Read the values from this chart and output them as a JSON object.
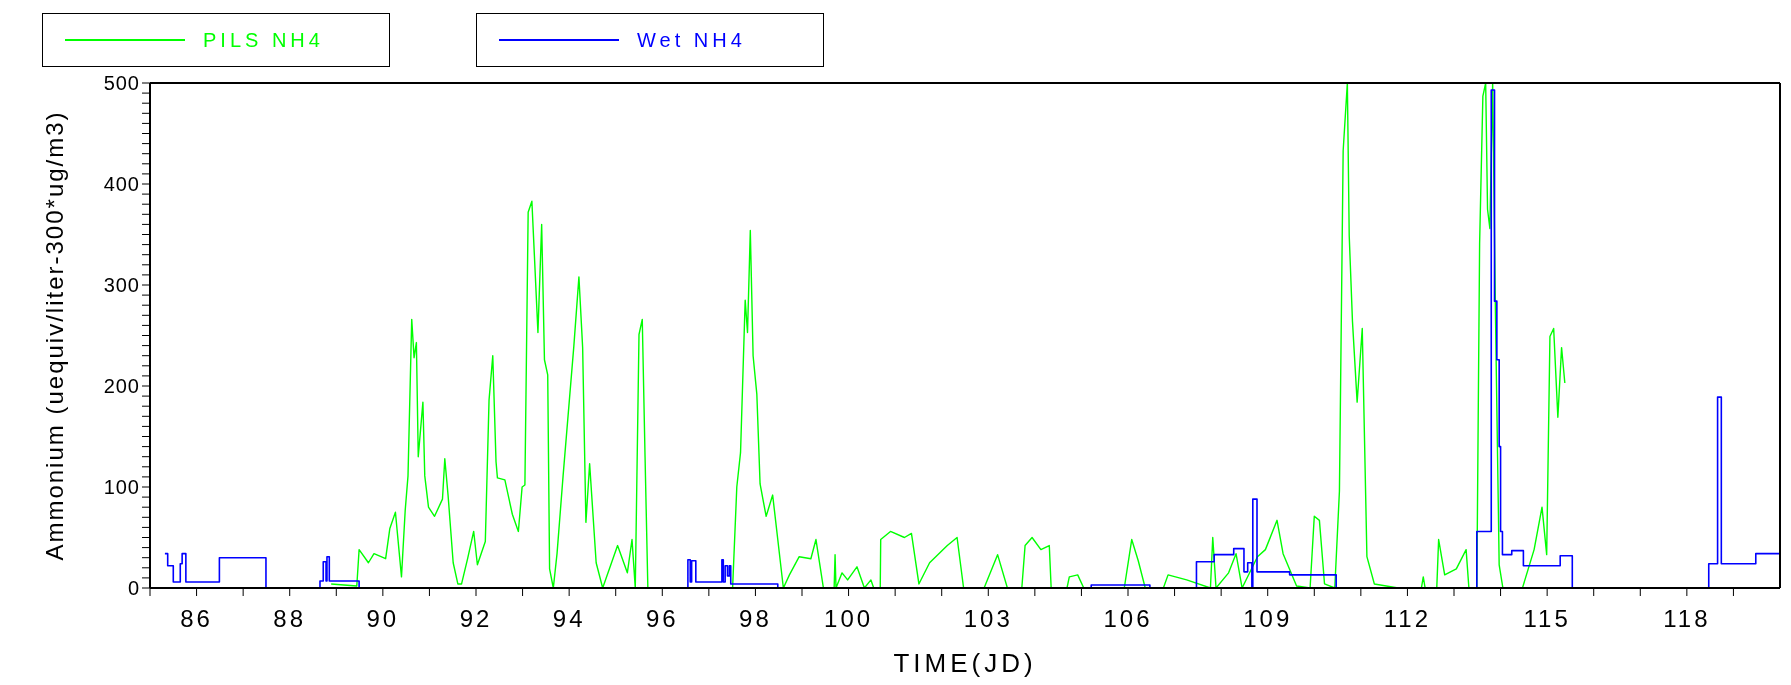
{
  "chart_data": {
    "type": "line",
    "xlabel": "TIME(JD)",
    "ylabel": "Ammonium (uequiv/liter-300*ug/m3)",
    "xlim": [
      85,
      120
    ],
    "xticks": [
      {
        "value": 85,
        "label": null
      },
      86,
      {
        "value": 87,
        "label": null
      },
      88,
      {
        "value": 89,
        "label": null
      },
      90,
      {
        "value": 91,
        "label": null
      },
      92,
      {
        "value": 93,
        "label": null
      },
      94,
      {
        "value": 95,
        "label": null
      },
      96,
      {
        "value": 97,
        "label": null
      },
      98,
      {
        "value": 99,
        "label": null
      },
      100,
      {
        "value": 101,
        "label": null
      },
      {
        "value": 102,
        "label": null
      },
      103,
      {
        "value": 104,
        "label": null
      },
      {
        "value": 105,
        "label": null
      },
      106,
      {
        "value": 107,
        "label": null
      },
      {
        "value": 108,
        "label": null
      },
      109,
      {
        "value": 110,
        "label": null
      },
      {
        "value": 111,
        "label": null
      },
      112,
      {
        "value": 113,
        "label": null
      },
      {
        "value": 114,
        "label": null
      },
      115,
      {
        "value": 116,
        "label": null
      },
      {
        "value": 117,
        "label": null
      },
      118,
      {
        "value": 119,
        "label": null
      }
    ],
    "ylim": [
      0,
      500
    ],
    "yticks": [
      0,
      {
        "value": 10,
        "label": null
      },
      {
        "value": 20,
        "label": null
      },
      {
        "value": 30,
        "label": null
      },
      {
        "value": 40,
        "label": null
      },
      {
        "value": 50,
        "label": null
      },
      {
        "value": 60,
        "label": null
      },
      {
        "value": 70,
        "label": null
      },
      {
        "value": 80,
        "label": null
      },
      {
        "value": 90,
        "label": null
      },
      100,
      {
        "value": 110,
        "label": null
      },
      {
        "value": 120,
        "label": null
      },
      {
        "value": 130,
        "label": null
      },
      {
        "value": 140,
        "label": null
      },
      {
        "value": 150,
        "label": null
      },
      {
        "value": 160,
        "label": null
      },
      {
        "value": 170,
        "label": null
      },
      {
        "value": 180,
        "label": null
      },
      {
        "value": 190,
        "label": null
      },
      200,
      {
        "value": 210,
        "label": null
      },
      {
        "value": 220,
        "label": null
      },
      {
        "value": 230,
        "label": null
      },
      {
        "value": 240,
        "label": null
      },
      {
        "value": 250,
        "label": null
      },
      {
        "value": 260,
        "label": null
      },
      {
        "value": 270,
        "label": null
      },
      {
        "value": 280,
        "label": null
      },
      {
        "value": 290,
        "label": null
      },
      300,
      {
        "value": 310,
        "label": null
      },
      {
        "value": 320,
        "label": null
      },
      {
        "value": 330,
        "label": null
      },
      {
        "value": 340,
        "label": null
      },
      {
        "value": 350,
        "label": null
      },
      {
        "value": 360,
        "label": null
      },
      {
        "value": 370,
        "label": null
      },
      {
        "value": 380,
        "label": null
      },
      {
        "value": 390,
        "label": null
      },
      400,
      {
        "value": 410,
        "label": null
      },
      {
        "value": 420,
        "label": null
      },
      {
        "value": 430,
        "label": null
      },
      {
        "value": 440,
        "label": null
      },
      {
        "value": 450,
        "label": null
      },
      {
        "value": 460,
        "label": null
      },
      {
        "value": 470,
        "label": null
      },
      {
        "value": 480,
        "label": null
      },
      {
        "value": 490,
        "label": null
      },
      500
    ],
    "legend": "top left",
    "grid": false,
    "series": [
      {
        "name": "PILS NH4",
        "color": "#00ff00",
        "type": "line",
        "x": [
          88.89,
          89.44,
          89.49,
          89.69,
          89.81,
          90.06,
          90.15,
          90.27,
          90.4,
          90.48,
          90.54,
          90.62,
          90.67,
          90.72,
          90.76,
          90.86,
          90.9,
          90.98,
          91.11,
          91.28,
          91.33,
          91.4,
          91.51,
          91.61,
          91.69,
          91.82,
          91.95,
          92.03,
          92.2,
          92.28,
          92.36,
          92.43,
          92.46,
          92.62,
          92.78,
          92.91,
          92.99,
          93.05,
          93.12,
          93.2,
          93.33,
          93.41,
          93.47,
          93.54,
          93.58,
          93.66,
          93.74,
          93.87,
          94.1,
          94.21,
          94.29,
          94.36,
          94.44,
          94.58,
          94.72,
          95.04,
          95.25,
          95.35,
          95.42,
          95.5,
          95.57,
          95.63,
          95.69,
          97.51,
          97.6,
          97.68,
          97.78,
          97.83,
          97.89,
          97.95,
          98.03,
          98.1,
          98.23,
          98.37,
          98.6,
          98.73,
          98.94,
          99.19,
          99.3,
          99.46,
          99.69,
          99.71,
          99.73,
          99.86,
          99.98,
          100.18,
          100.34,
          100.48,
          100.54,
          100.68,
          100.69,
          100.9,
          101.2,
          101.35,
          101.51,
          101.74,
          102.12,
          102.33,
          102.47,
          102.91,
          103.2,
          103.41,
          103.72,
          103.79,
          103.94,
          104.13,
          104.31,
          104.35,
          104.69,
          104.74,
          104.92,
          105.05,
          105.92,
          106.08,
          106.22,
          106.37,
          106.76,
          106.86,
          107.26,
          107.77,
          107.82,
          107.89,
          108.16,
          108.32,
          108.45,
          108.78,
          108.95,
          109.2,
          109.33,
          109.62,
          109.91,
          110.0,
          110.11,
          110.22,
          110.44,
          110.54,
          110.62,
          110.71,
          110.75,
          110.82,
          110.92,
          111.03,
          111.13,
          111.29,
          111.8,
          112.3,
          112.34,
          112.38,
          112.63,
          112.67,
          112.8,
          113.05,
          113.26,
          113.32,
          113.49,
          113.55,
          113.62,
          113.68,
          113.72,
          113.77,
          113.83,
          113.89,
          113.97,
          114.05,
          114.47,
          114.72,
          114.89,
          114.99,
          115.06,
          115.14,
          115.23,
          115.31,
          115.38
        ],
        "values": [
          4,
          2,
          38,
          25,
          34,
          29,
          59,
          75,
          11,
          77,
          111,
          266,
          228,
          243,
          130,
          184,
          111,
          80,
          71,
          88,
          128,
          92,
          25,
          4,
          4,
          29,
          56,
          23,
          46,
          186,
          230,
          125,
          109,
          107,
          73,
          56,
          100,
          102,
          372,
          383,
          253,
          360,
          226,
          211,
          19,
          0,
          34,
          111,
          239,
          308,
          238,
          65,
          123,
          25,
          0,
          42,
          15,
          48,
          0,
          251,
          266,
          130,
          0,
          0,
          100,
          134,
          285,
          253,
          354,
          230,
          192,
          103,
          71,
          92,
          0,
          13,
          31,
          29,
          48,
          0,
          0,
          33,
          0,
          15,
          8,
          21,
          0,
          8,
          0,
          0,
          48,
          56,
          50,
          54,
          4,
          25,
          42,
          50,
          0,
          0,
          33,
          0,
          0,
          42,
          50,
          38,
          42,
          0,
          0,
          11,
          13,
          0,
          0,
          48,
          27,
          0,
          0,
          13,
          8,
          0,
          50,
          0,
          15,
          34,
          0,
          31,
          38,
          67,
          34,
          2,
          0,
          71,
          67,
          4,
          0,
          96,
          433,
          500,
          349,
          264,
          184,
          257,
          31,
          4,
          0,
          0,
          11,
          0,
          0,
          48,
          13,
          19,
          38,
          0,
          0,
          341,
          487,
          500,
          375,
          356,
          500,
          272,
          23,
          0,
          0,
          38,
          80,
          33,
          249,
          257,
          169,
          238,
          203
        ]
      },
      {
        "name": "Wet NH4",
        "color": "#0000ff",
        "type": "step",
        "x": [
          85.32,
          85.38,
          85.5,
          85.65,
          85.69,
          85.77,
          86.49,
          87.49,
          88.65,
          88.72,
          88.78,
          88.8,
          88.85,
          89.49,
          96.55,
          96.6,
          96.63,
          96.72,
          97.28,
          97.31,
          97.35,
          97.4,
          97.44,
          97.47,
          98.48,
          105.21,
          106.47,
          107.47,
          107.85,
          108.27,
          108.49,
          108.57,
          108.66,
          108.68,
          108.77,
          109.47,
          110.47,
          113.49,
          113.8,
          113.87,
          113.92,
          113.97,
          114.0,
          114.04,
          114.24,
          114.49,
          115.28,
          115.54,
          118.47,
          118.66,
          118.74,
          119.48,
          120
        ],
        "values": [
          34,
          22,
          6,
          24,
          34,
          6,
          30,
          0,
          7,
          26,
          7,
          31,
          7,
          0,
          28,
          6,
          27,
          6,
          28,
          6,
          22,
          12,
          22,
          4,
          0,
          3,
          0,
          26,
          33,
          39,
          16,
          25,
          0,
          88,
          16,
          13,
          0,
          56,
          493,
          284,
          226,
          140,
          56,
          33,
          37,
          22,
          32,
          0,
          24,
          189,
          24,
          34,
          34
        ]
      }
    ]
  }
}
